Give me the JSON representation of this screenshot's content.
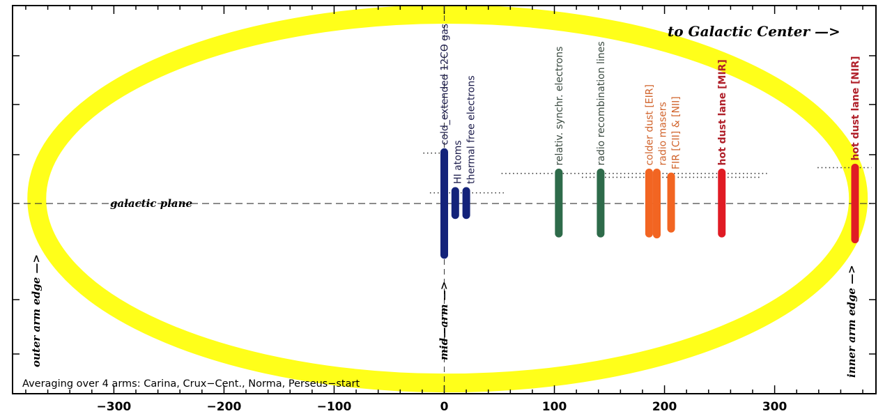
{
  "chart_data": {
    "type": "diagram-bar",
    "title": "",
    "xlabel": "",
    "ylabel": "",
    "xlim": [
      -392,
      392
    ],
    "ylim": [
      -196,
      204
    ],
    "xticks": [
      -300,
      -200,
      -100,
      0,
      100,
      200,
      300
    ],
    "xtick_labels": [
      "−300",
      "−200",
      "−100",
      "0",
      "100",
      "200",
      "300"
    ],
    "ellipse": {
      "cx": 3,
      "cy": 5,
      "rx": 373,
      "ry": 190,
      "color": "#ffff1a"
    },
    "galactic_plane_label": "galactic plane",
    "annotations": {
      "to_center": "to Galactic Center —>",
      "outer_edge": "outer arm edge —>",
      "mid_arm": "mid—arm —>",
      "inner_edge": "inner arm edge —>",
      "averaging": "Averaging over 4 arms: Carina, Crux−Cent., Norma, Perseus−start"
    },
    "series": [
      {
        "name": "cold_extended 12CO gas",
        "x": 0,
        "y_top": 53,
        "y_bottom": -53,
        "color": "#14237a",
        "label_color": "#1a1a4a"
      },
      {
        "name": "HI atoms",
        "x": 10,
        "y_top": 13,
        "y_bottom": -12,
        "color": "#14237a",
        "label_color": "#1a1a4a"
      },
      {
        "name": "thermal free electrons",
        "x": 20,
        "y_top": 13,
        "y_bottom": -12,
        "color": "#14237a",
        "label_color": "#1a1a4a"
      },
      {
        "name": "relativ. synchr. electrons",
        "x": 104,
        "y_top": 32,
        "y_bottom": -31,
        "color": "#2e6b4a",
        "label_color": "#3a4a40"
      },
      {
        "name": "radio recombination lines",
        "x": 142,
        "y_top": 32,
        "y_bottom": -31,
        "color": "#2e6b4a",
        "label_color": "#3a4a40"
      },
      {
        "name": "colder dust [EIR]",
        "x": 186,
        "y_top": 32,
        "y_bottom": -31,
        "color": "#f26522",
        "label_color": "#d0622a"
      },
      {
        "name": "radio masers",
        "x": 193,
        "y_top": 32,
        "y_bottom": -32,
        "color": "#f26522",
        "label_color": "#d0622a"
      },
      {
        "name": "FIR [CII] & [NII]",
        "x": 206,
        "y_top": 28,
        "y_bottom": -26,
        "color": "#f26522",
        "label_color": "#d0622a"
      },
      {
        "name": "hot dust lane [MIR]",
        "x": 252,
        "y_top": 32,
        "y_bottom": -31,
        "color": "#e01b24",
        "label_color": "#b0202a"
      },
      {
        "name": "hot dust lane [NIR]",
        "x": 373,
        "y_top": 37,
        "y_bottom": -37,
        "color": "#e01b24",
        "label_color": "#b0202a"
      }
    ],
    "dotted_levels": [
      {
        "y": 52,
        "x0": -19,
        "x1": 0
      },
      {
        "y": 11,
        "x0": -13,
        "x1": 54
      },
      {
        "y": 31,
        "x0": 52,
        "x1": 293
      },
      {
        "y": 27,
        "x0": 125,
        "x1": 287
      },
      {
        "y": 37,
        "x0": 339,
        "x1": 388
      }
    ]
  }
}
